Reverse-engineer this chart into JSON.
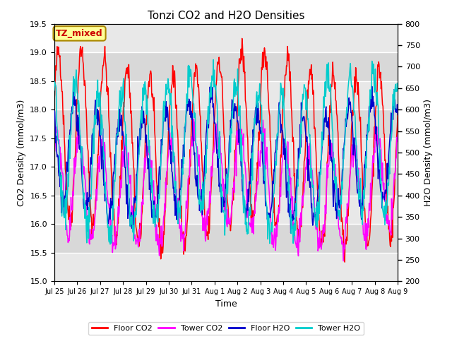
{
  "title": "Tonzi CO2 and H2O Densities",
  "xlabel": "Time",
  "ylabel_left": "CO2 Density (mmol/m3)",
  "ylabel_right": "H2O Density (mmol/m3)",
  "annotation": "TZ_mixed",
  "annotation_color": "#cc0000",
  "annotation_bg": "#ffff99",
  "annotation_border": "#aa8800",
  "ylim_left": [
    15.0,
    19.5
  ],
  "ylim_right": [
    200,
    800
  ],
  "yticks_left": [
    15.0,
    15.5,
    16.0,
    16.5,
    17.0,
    17.5,
    18.0,
    18.5,
    19.0,
    19.5
  ],
  "yticks_right": [
    200,
    250,
    300,
    350,
    400,
    450,
    500,
    550,
    600,
    650,
    700,
    750,
    800
  ],
  "colors": {
    "floor_co2": "#ff0000",
    "tower_co2": "#ff00ff",
    "floor_h2o": "#0000cc",
    "tower_h2o": "#00cccc"
  },
  "legend_labels": [
    "Floor CO2",
    "Tower CO2",
    "Floor H2O",
    "Tower H2O"
  ],
  "plot_bg": "#e8e8e8",
  "band_color": "#d0d0d0",
  "n_points": 720,
  "total_days": 15,
  "seed": 42,
  "figsize": [
    6.4,
    4.8
  ],
  "dpi": 100,
  "tick_labels": [
    "Jul 25",
    "Jul 26",
    "Jul 27",
    "Jul 28",
    "Jul 29",
    "Jul 30",
    "Jul 31",
    "Aug 1",
    "Aug 2",
    "Aug 3",
    "Aug 4",
    "Aug 5",
    "Aug 6",
    "Aug 7",
    "Aug 8",
    "Aug 9"
  ]
}
